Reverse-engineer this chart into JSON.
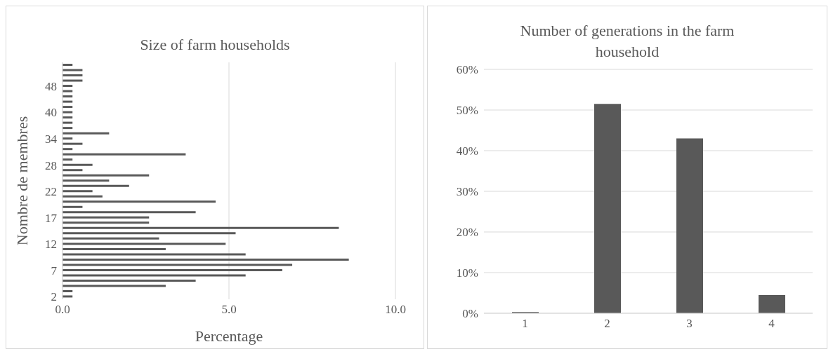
{
  "chart_data": [
    {
      "type": "bar",
      "title": "Size of farm households",
      "xlabel": "Percentage",
      "ylabel": "Nombre de membres",
      "orientation": "horizontal",
      "categories": [
        null,
        null,
        null,
        null,
        "48",
        null,
        null,
        null,
        null,
        "40",
        null,
        null,
        null,
        null,
        "34",
        null,
        null,
        null,
        null,
        "28",
        null,
        null,
        null,
        null,
        "22",
        null,
        null,
        null,
        null,
        "17",
        null,
        null,
        null,
        null,
        "12",
        null,
        null,
        null,
        null,
        "7",
        null,
        null,
        null,
        null,
        "2"
      ],
      "values": [
        0.3,
        0.6,
        0.6,
        0.6,
        0.3,
        0.3,
        0.3,
        0.3,
        0.3,
        0.3,
        0.3,
        0.3,
        0.3,
        1.4,
        0.3,
        0.6,
        0.3,
        3.7,
        0.3,
        0.9,
        0.6,
        2.6,
        1.4,
        2.0,
        0.9,
        1.2,
        4.6,
        0.6,
        4.0,
        2.6,
        2.6,
        8.3,
        5.2,
        2.9,
        4.9,
        3.1,
        5.5,
        8.6,
        6.9,
        6.6,
        5.5,
        4.0,
        3.1,
        0.3,
        0.3
      ],
      "color": "#595959",
      "xlim": [
        0,
        10
      ],
      "xticks": [
        {
          "value": 0,
          "label": "0.0"
        },
        {
          "value": 5,
          "label": "5.0"
        },
        {
          "value": 10,
          "label": "10.0"
        }
      ],
      "grid": "x",
      "legend": false
    },
    {
      "type": "bar",
      "title": "Number of generations in the farm household",
      "categories": [
        "1",
        "2",
        "3",
        "4"
      ],
      "values": [
        0.3,
        51.5,
        43.0,
        4.5
      ],
      "color": "#595959",
      "ylim": [
        0,
        60
      ],
      "yticks": [
        {
          "value": 0,
          "label": "0%"
        },
        {
          "value": 10,
          "label": "10%"
        },
        {
          "value": 20,
          "label": "20%"
        },
        {
          "value": 30,
          "label": "30%"
        },
        {
          "value": 40,
          "label": "40%"
        },
        {
          "value": 50,
          "label": "50%"
        },
        {
          "value": 60,
          "label": "60%"
        }
      ],
      "grid": "y",
      "legend": false
    }
  ]
}
